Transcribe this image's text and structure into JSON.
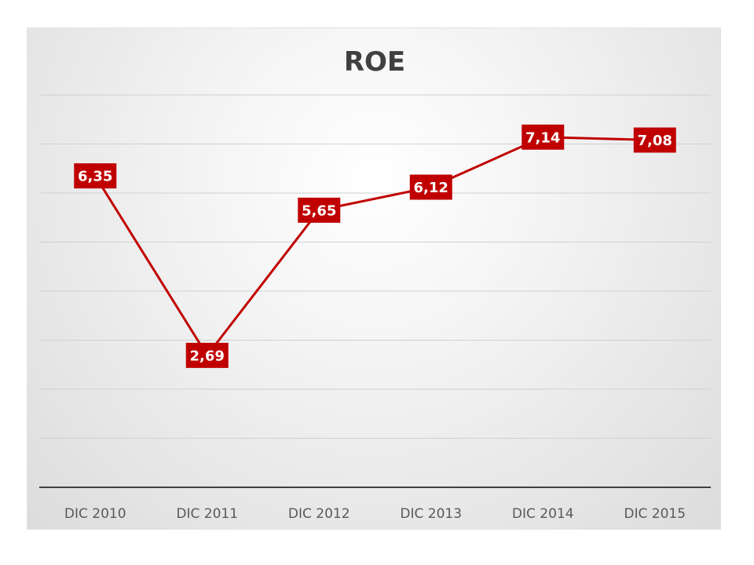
{
  "chart_data": {
    "type": "line",
    "title": "ROE",
    "xlabel": "",
    "ylabel": "",
    "categories": [
      "DIC 2010",
      "DIC 2011",
      "DIC 2012",
      "DIC 2013",
      "DIC 2014",
      "DIC 2015"
    ],
    "series": [
      {
        "values": [
          6.35,
          2.69,
          5.65,
          6.12,
          7.14,
          7.08
        ],
        "labels": [
          "6,35",
          "2,69",
          "5,65",
          "6,12",
          "7,14",
          "7,08"
        ]
      }
    ],
    "ylim": [
      0,
      8
    ],
    "grid": true,
    "legend": "none",
    "colors": {
      "line": "#c00000",
      "label_bg": "#c00000",
      "label_text": "#ffffff",
      "grid": "#d0d0d0",
      "axis": "#404040",
      "title": "#404040",
      "tick": "#595959"
    }
  }
}
